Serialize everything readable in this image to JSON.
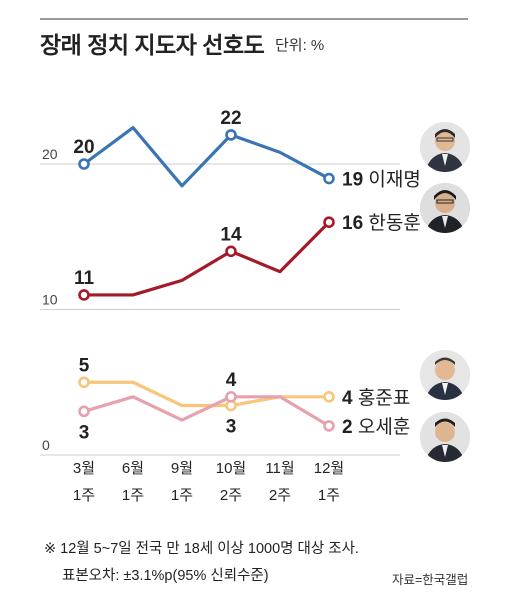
{
  "title": "장래 정치 지도자 선호도",
  "unit": "단위: %",
  "footnote_1": "※ 12월 5~7일 전국 만 18세 이상 1000명 대상 조사.",
  "footnote_2": "표본오차: ±3.1%p(95% 신뢰수준)",
  "source": "자료=한국갤럽",
  "chart_data": {
    "type": "line",
    "categories": [
      "3월\n1주",
      "6월\n1주",
      "9월\n1주",
      "10월\n2주",
      "11월\n2주",
      "12월\n1주"
    ],
    "category_lines": [
      [
        "3월",
        "1주"
      ],
      [
        "6월",
        "1주"
      ],
      [
        "9월",
        "1주"
      ],
      [
        "10월",
        "2주"
      ],
      [
        "11월",
        "2주"
      ],
      [
        "12월",
        "1주"
      ]
    ],
    "yticks": [
      0,
      10,
      20
    ],
    "ylim": [
      0,
      24
    ],
    "grid": true,
    "series": [
      {
        "name": "이재명",
        "color": "#3a74b3",
        "values": [
          20,
          22.5,
          18.5,
          22,
          20.8,
          19
        ],
        "labels": [
          {
            "i": 0,
            "text": "20",
            "pos": "above"
          },
          {
            "i": 3,
            "text": "22",
            "pos": "above"
          }
        ],
        "end_label": "19"
      },
      {
        "name": "한동훈",
        "color": "#a31a2a",
        "values": [
          11,
          11,
          12,
          14,
          12.6,
          16
        ],
        "labels": [
          {
            "i": 0,
            "text": "11",
            "pos": "above"
          },
          {
            "i": 3,
            "text": "14",
            "pos": "above"
          }
        ],
        "end_label": "16"
      },
      {
        "name": "홍준표",
        "color": "#f8c57a",
        "values": [
          5,
          5,
          3.4,
          3.4,
          4,
          4
        ],
        "labels": [
          {
            "i": 0,
            "text": "5",
            "pos": "above"
          },
          {
            "i": 3,
            "text": "3",
            "pos": "below"
          }
        ],
        "end_label": "4"
      },
      {
        "name": "오세훈",
        "color": "#e6a1ac",
        "values": [
          3,
          4,
          2.4,
          4,
          4,
          2
        ],
        "labels": [
          {
            "i": 0,
            "text": "3",
            "pos": "below"
          },
          {
            "i": 3,
            "text": "4",
            "pos": "above"
          }
        ],
        "end_label": "2"
      }
    ]
  }
}
